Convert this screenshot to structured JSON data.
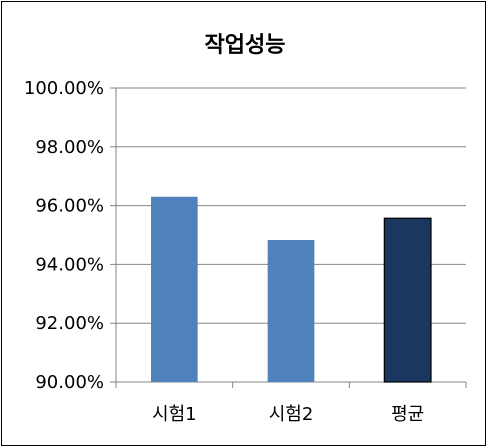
{
  "chart_data": {
    "type": "bar",
    "title": "작업성능",
    "categories": [
      "시험1",
      "시험2",
      "평균"
    ],
    "values": [
      96.3,
      94.83,
      95.57
    ],
    "ylim": [
      90,
      100
    ],
    "ytick_labels": [
      "90.00%",
      "92.00%",
      "94.00%",
      "96.00%",
      "98.00%",
      "100.00%"
    ],
    "ytick_values": [
      90,
      92,
      94,
      96,
      98,
      100
    ],
    "grid": true,
    "legend": "none",
    "colors": [
      "#4f81bd",
      "#4f81bd",
      "#1b365f"
    ],
    "highlight_outline": "#000000"
  }
}
